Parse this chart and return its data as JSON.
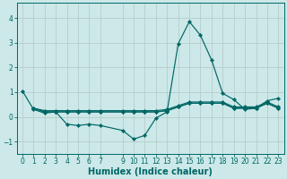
{
  "x_all": [
    0,
    1,
    2,
    3,
    4,
    5,
    6,
    7,
    9,
    10,
    11,
    12,
    13,
    14,
    15,
    16,
    17,
    18,
    19,
    20,
    21,
    22,
    23
  ],
  "line1": [
    1.05,
    0.3,
    0.15,
    0.2,
    -0.3,
    -0.35,
    -0.3,
    -0.35,
    -0.55,
    -0.9,
    -0.75,
    -0.05,
    0.2,
    2.95,
    3.85,
    3.3,
    2.3,
    0.95,
    0.7,
    0.3,
    0.35,
    0.65,
    0.75
  ],
  "x_flat": [
    1,
    2,
    3,
    4,
    5,
    6,
    7,
    9,
    10,
    11,
    12,
    13,
    14,
    15,
    16,
    17,
    18,
    19,
    20,
    21,
    22,
    23
  ],
  "line2": [
    0.35,
    0.2,
    0.2,
    0.2,
    0.2,
    0.2,
    0.2,
    0.2,
    0.2,
    0.2,
    0.2,
    0.25,
    0.4,
    0.55,
    0.55,
    0.55,
    0.55,
    0.35,
    0.35,
    0.35,
    0.55,
    0.35
  ],
  "line3": [
    0.35,
    0.2,
    0.2,
    0.2,
    0.2,
    0.2,
    0.2,
    0.2,
    0.2,
    0.2,
    0.2,
    0.25,
    0.4,
    0.55,
    0.55,
    0.55,
    0.55,
    0.35,
    0.35,
    0.35,
    0.55,
    0.35
  ],
  "line4": [
    0.35,
    0.25,
    0.25,
    0.25,
    0.25,
    0.25,
    0.25,
    0.25,
    0.25,
    0.25,
    0.25,
    0.3,
    0.45,
    0.6,
    0.6,
    0.6,
    0.6,
    0.4,
    0.4,
    0.4,
    0.6,
    0.4
  ],
  "bg_color": "#cce8e8",
  "plot_bg": "#cce8e8",
  "line_color": "#006666",
  "grid_color": "#b8cccc",
  "xlabel": "Humidex (Indice chaleur)",
  "xlim": [
    -0.5,
    23.5
  ],
  "ylim": [
    -1.5,
    4.6
  ],
  "yticks": [
    -1,
    0,
    1,
    2,
    3,
    4
  ],
  "xticks": [
    0,
    1,
    2,
    3,
    4,
    5,
    6,
    7,
    9,
    10,
    11,
    12,
    13,
    14,
    15,
    16,
    17,
    18,
    19,
    20,
    21,
    22,
    23
  ],
  "xticklabels": [
    "0",
    "1",
    "2",
    "3",
    "4",
    "5",
    "6",
    "7",
    "9",
    "10",
    "11",
    "12",
    "13",
    "14",
    "15",
    "16",
    "17",
    "18",
    "19",
    "20",
    "21",
    "22",
    "23"
  ],
  "tick_fontsize": 5.5,
  "xlabel_fontsize": 7.0,
  "marker": "D",
  "markersize": 2.2,
  "linewidth": 0.85
}
